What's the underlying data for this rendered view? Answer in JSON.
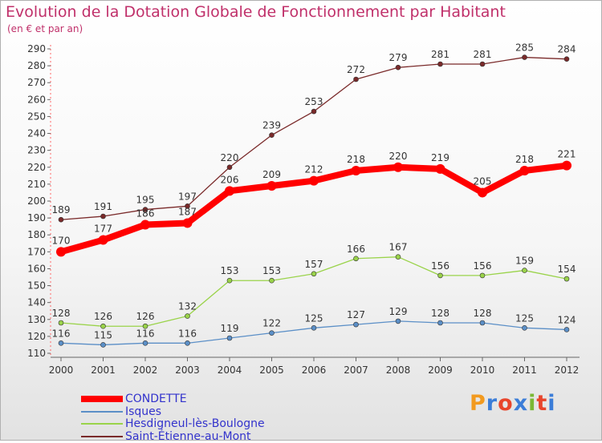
{
  "chart_data": {
    "type": "line",
    "title": "Evolution de la Dotation Globale de Fonctionnement par Habitant",
    "subtitle": "(en € et par an)",
    "categories": [
      "2000",
      "2001",
      "2002",
      "2003",
      "2004",
      "2005",
      "2006",
      "2007",
      "2008",
      "2009",
      "2010",
      "2011",
      "2012"
    ],
    "ylim": [
      110,
      290
    ],
    "ystep": 10,
    "grid": false,
    "legend_position": "bottom-left",
    "series": [
      {
        "name": "CONDETTE",
        "color": "#ff0000",
        "values": [
          170,
          177,
          186,
          187,
          206,
          209,
          212,
          218,
          220,
          219,
          205,
          218,
          221
        ]
      },
      {
        "name": "Isques",
        "color": "#5b8fc7",
        "values": [
          116,
          115,
          116,
          116,
          119,
          122,
          125,
          127,
          129,
          128,
          128,
          125,
          124
        ]
      },
      {
        "name": "Hesdigneul-lès-Boulogne",
        "color": "#9ad34a",
        "values": [
          128,
          126,
          126,
          132,
          153,
          153,
          157,
          166,
          167,
          156,
          156,
          159,
          154
        ]
      },
      {
        "name": "Saint-Étienne-au-Mont",
        "color": "#7a2a2a",
        "values": [
          189,
          191,
          195,
          197,
          220,
          239,
          253,
          272,
          279,
          281,
          281,
          285,
          284
        ]
      }
    ]
  },
  "logo": {
    "text": "Proxiti",
    "colors": [
      "#f29a1f",
      "#3b7dd8",
      "#e8452c",
      "#3b7dd8",
      "#7ab834",
      "#e8452c",
      "#3b7dd8"
    ]
  }
}
